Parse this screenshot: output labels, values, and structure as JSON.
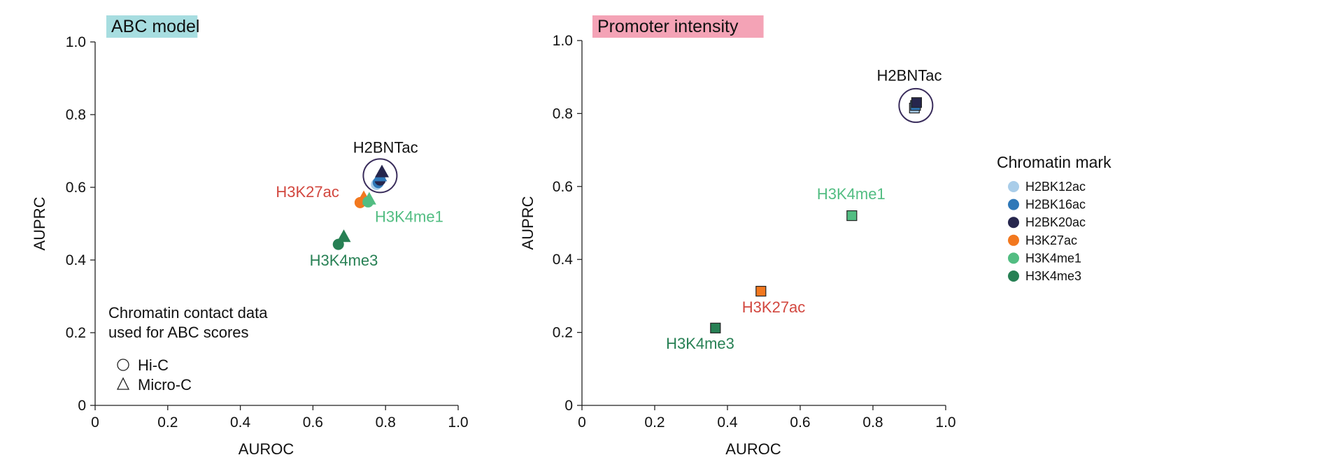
{
  "colors": {
    "H2BK12ac": "#a9cde9",
    "H2BK16ac": "#2f78b8",
    "H2BK20ac": "#26264d",
    "H3K27ac": "#f2781f",
    "H3K4me1": "#52bd82",
    "H3K4me3": "#278054",
    "label_H3K27ac": "#d2473f",
    "label_H3K4me1": "#52bd82",
    "label_H3K4me3": "#278054",
    "label_H2BNTac": "#111111",
    "title_bg_abc": "#a7dde0",
    "title_bg_promoter": "#f4a3b6",
    "circle": "#3a2d5c"
  },
  "chart_data": [
    {
      "type": "scatter",
      "title": "ABC model",
      "xlabel": "AUROC",
      "ylabel": "AUPRC",
      "xlim": [
        0,
        1.0
      ],
      "ylim": [
        0,
        1.0
      ],
      "xticks": [
        "0",
        "0.2",
        "0.4",
        "0.6",
        "0.8",
        "1.0"
      ],
      "yticks": [
        "0",
        "0.2",
        "0.4",
        "0.6",
        "0.8",
        "1.0"
      ],
      "grid": false,
      "points": [
        {
          "mark": "H3K4me3",
          "data": "Hi-C",
          "x": 0.67,
          "y": 0.443
        },
        {
          "mark": "H3K4me3",
          "data": "Micro-C",
          "x": 0.685,
          "y": 0.465
        },
        {
          "mark": "H3K27ac",
          "data": "Hi-C",
          "x": 0.73,
          "y": 0.558
        },
        {
          "mark": "H3K27ac",
          "data": "Micro-C",
          "x": 0.74,
          "y": 0.572
        },
        {
          "mark": "H3K4me1",
          "data": "Hi-C",
          "x": 0.752,
          "y": 0.56
        },
        {
          "mark": "H3K4me1",
          "data": "Micro-C",
          "x": 0.755,
          "y": 0.568
        },
        {
          "mark": "H2BK12ac",
          "data": "Hi-C",
          "x": 0.775,
          "y": 0.608
        },
        {
          "mark": "H2BK16ac",
          "data": "Hi-C",
          "x": 0.78,
          "y": 0.613
        },
        {
          "mark": "H2BK20ac",
          "data": "Hi-C",
          "x": 0.785,
          "y": 0.62
        },
        {
          "mark": "H2BK16ac",
          "data": "Micro-C",
          "x": 0.785,
          "y": 0.632
        },
        {
          "mark": "H2BK20ac",
          "data": "Micro-C",
          "x": 0.79,
          "y": 0.643
        }
      ],
      "highlight": {
        "label": "H2BNTac",
        "x": 0.785,
        "y": 0.632
      },
      "annotations": [
        {
          "text": "H2BNTac",
          "x": 0.8,
          "y": 0.695,
          "color_key": "label_H2BNTac"
        },
        {
          "text": "H3K27ac",
          "x": 0.585,
          "y": 0.573,
          "color_key": "label_H3K27ac"
        },
        {
          "text": "H3K4me1",
          "x": 0.865,
          "y": 0.505,
          "color_key": "label_H3K4me1"
        },
        {
          "text": "H3K4me3",
          "x": 0.685,
          "y": 0.385,
          "color_key": "label_H3K4me3"
        }
      ],
      "contact_legend": {
        "title_lines": [
          "Chromatin contact data",
          "used for ABC scores"
        ],
        "items": [
          {
            "shape": "circle",
            "label": "Hi-C"
          },
          {
            "shape": "triangle",
            "label": "Micro-C"
          }
        ]
      }
    },
    {
      "type": "scatter",
      "title": "Promoter intensity",
      "xlabel": "AUROC",
      "ylabel": "AUPRC",
      "xlim": [
        0,
        1.0
      ],
      "ylim": [
        0,
        1.0
      ],
      "xticks": [
        "0",
        "0.2",
        "0.4",
        "0.6",
        "0.8",
        "1.0"
      ],
      "yticks": [
        "0",
        "0.2",
        "0.4",
        "0.6",
        "0.8",
        "1.0"
      ],
      "grid": false,
      "points": [
        {
          "mark": "H3K4me3",
          "x": 0.367,
          "y": 0.212
        },
        {
          "mark": "H3K27ac",
          "x": 0.492,
          "y": 0.313
        },
        {
          "mark": "H3K4me1",
          "x": 0.742,
          "y": 0.52
        },
        {
          "mark": "H2BK12ac",
          "x": 0.914,
          "y": 0.815
        },
        {
          "mark": "H2BK16ac",
          "x": 0.917,
          "y": 0.822
        },
        {
          "mark": "H2BK20ac",
          "x": 0.92,
          "y": 0.83
        }
      ],
      "highlight": {
        "label": "H2BNTac",
        "x": 0.918,
        "y": 0.822
      },
      "annotations": [
        {
          "text": "H2BNTac",
          "x": 0.9,
          "y": 0.89,
          "color_key": "label_H2BNTac"
        },
        {
          "text": "H3K4me1",
          "x": 0.74,
          "y": 0.565,
          "color_key": "label_H3K4me1"
        },
        {
          "text": "H3K27ac",
          "x": 0.527,
          "y": 0.255,
          "color_key": "label_H3K27ac"
        },
        {
          "text": "H3K4me3",
          "x": 0.325,
          "y": 0.155,
          "color_key": "label_H3K4me3"
        }
      ],
      "legend": {
        "title": "Chromatin mark",
        "placement": "right",
        "items": [
          "H2BK12ac",
          "H2BK16ac",
          "H2BK20ac",
          "H3K27ac",
          "H3K4me1",
          "H3K4me3"
        ]
      }
    }
  ]
}
